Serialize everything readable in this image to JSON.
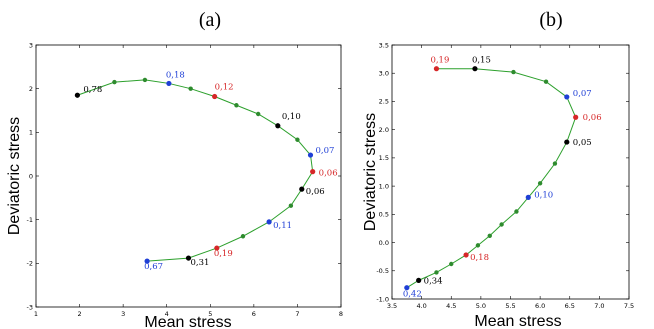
{
  "chart_data": [
    {
      "type": "line",
      "panel_label": "(a)",
      "xlabel": "Mean stress",
      "ylabel": "Deviatoric stress",
      "xlim": [
        1,
        8
      ],
      "ylim": [
        -3,
        3
      ],
      "xticks": [
        "1",
        "2",
        "3",
        "4",
        "5",
        "6",
        "7",
        "8"
      ],
      "yticks": [
        "-3",
        "-2",
        "-1",
        "0",
        "1",
        "2",
        "3"
      ],
      "line_color": "#2ca02c",
      "series": [
        {
          "points": [
            {
              "x": 1.95,
              "y": 1.85,
              "color": "#000000",
              "label": "0,78"
            },
            {
              "x": 2.8,
              "y": 2.15,
              "color": "#2e8b2e"
            },
            {
              "x": 3.5,
              "y": 2.2,
              "color": "#2e8b2e"
            },
            {
              "x": 4.05,
              "y": 2.12,
              "color": "#1f3fd6",
              "label": "0,18"
            },
            {
              "x": 4.55,
              "y": 2.0,
              "color": "#2e8b2e"
            },
            {
              "x": 5.1,
              "y": 1.82,
              "color": "#d62728",
              "label": "0,12"
            },
            {
              "x": 5.6,
              "y": 1.62,
              "color": "#2e8b2e"
            },
            {
              "x": 6.1,
              "y": 1.42,
              "color": "#2e8b2e"
            },
            {
              "x": 6.55,
              "y": 1.15,
              "color": "#000000",
              "label": "0,10"
            },
            {
              "x": 7.0,
              "y": 0.83,
              "color": "#2e8b2e"
            },
            {
              "x": 7.3,
              "y": 0.48,
              "color": "#1f3fd6",
              "label": "0,07"
            },
            {
              "x": 7.35,
              "y": 0.1,
              "color": "#d62728",
              "label": "0,06"
            },
            {
              "x": 7.1,
              "y": -0.3,
              "color": "#000000",
              "label": "0,06"
            },
            {
              "x": 6.85,
              "y": -0.68,
              "color": "#2e8b2e"
            },
            {
              "x": 6.35,
              "y": -1.05,
              "color": "#1f3fd6",
              "label": "0,11"
            },
            {
              "x": 5.75,
              "y": -1.38,
              "color": "#2e8b2e"
            },
            {
              "x": 5.15,
              "y": -1.65,
              "color": "#d62728",
              "label": "0,19"
            },
            {
              "x": 4.5,
              "y": -1.88,
              "color": "#000000",
              "label": "0,31"
            },
            {
              "x": 3.55,
              "y": -1.95,
              "color": "#1f3fd6",
              "label": "0,67"
            }
          ]
        }
      ]
    },
    {
      "type": "line",
      "panel_label": "(b)",
      "xlabel": "Mean stress",
      "ylabel": "Deviatoric stress",
      "xlim": [
        3.5,
        7.5
      ],
      "ylim": [
        -1.0,
        3.5
      ],
      "xticks": [
        "3.5",
        "4.0",
        "4.5",
        "5.0",
        "5.5",
        "6.0",
        "6.5",
        "7.0",
        "7.5"
      ],
      "yticks": [
        "-1.0",
        "-0.5",
        "0.0",
        "0.5",
        "1.0",
        "1.5",
        "2.0",
        "2.5",
        "3.0",
        "3.5"
      ],
      "line_color": "#2ca02c",
      "series": [
        {
          "points": [
            {
              "x": 4.25,
              "y": 3.08,
              "color": "#d62728",
              "label": "0,19"
            },
            {
              "x": 4.9,
              "y": 3.08,
              "color": "#000000",
              "label": "0,15"
            },
            {
              "x": 5.55,
              "y": 3.02,
              "color": "#2e8b2e"
            },
            {
              "x": 6.1,
              "y": 2.85,
              "color": "#2e8b2e"
            },
            {
              "x": 6.45,
              "y": 2.58,
              "color": "#1f3fd6",
              "label": "0,07"
            },
            {
              "x": 6.6,
              "y": 2.22,
              "color": "#d62728",
              "label": "0,06"
            },
            {
              "x": 6.45,
              "y": 1.78,
              "color": "#000000",
              "label": "0,05"
            },
            {
              "x": 6.25,
              "y": 1.4,
              "color": "#2e8b2e"
            },
            {
              "x": 6.0,
              "y": 1.05,
              "color": "#2e8b2e"
            },
            {
              "x": 5.8,
              "y": 0.8,
              "color": "#1f3fd6",
              "label": "0,10"
            },
            {
              "x": 5.6,
              "y": 0.55,
              "color": "#2e8b2e"
            },
            {
              "x": 5.35,
              "y": 0.32,
              "color": "#2e8b2e"
            },
            {
              "x": 5.15,
              "y": 0.12,
              "color": "#2e8b2e"
            },
            {
              "x": 4.95,
              "y": -0.05,
              "color": "#2e8b2e"
            },
            {
              "x": 4.75,
              "y": -0.22,
              "color": "#d62728",
              "label": "0,18"
            },
            {
              "x": 4.5,
              "y": -0.38,
              "color": "#2e8b2e"
            },
            {
              "x": 4.25,
              "y": -0.53,
              "color": "#2e8b2e"
            },
            {
              "x": 3.95,
              "y": -0.67,
              "color": "#000000",
              "label": "0,34"
            },
            {
              "x": 3.75,
              "y": -0.8,
              "color": "#1f3fd6",
              "label": "0,42"
            }
          ]
        }
      ]
    }
  ]
}
